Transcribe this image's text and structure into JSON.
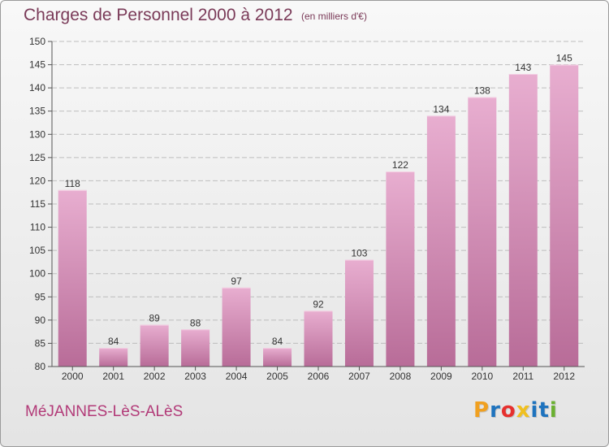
{
  "title": "Charges de Personnel 2000 à 2012",
  "subtitle": "(en milliers d'€)",
  "commune": "MéJANNES-LèS-ALèS",
  "logo": {
    "letters": [
      "P",
      "r",
      "o",
      "x",
      "i",
      "t",
      "i"
    ],
    "colors": [
      "#f0a020",
      "#1e73be",
      "#e6302e",
      "#f0c020",
      "#1e73be",
      "#1e73be",
      "#6ab030"
    ]
  },
  "colors": {
    "bar_top": "#e8aed0",
    "bar_bottom": "#b86c98",
    "bar_highlight": "#f3cfe3",
    "text": "#7a3a58",
    "axis": "#555555"
  },
  "chart_data": {
    "type": "bar",
    "categories": [
      "2000",
      "2001",
      "2002",
      "2003",
      "2004",
      "2005",
      "2006",
      "2007",
      "2008",
      "2009",
      "2010",
      "2011",
      "2012"
    ],
    "values": [
      118,
      84,
      89,
      88,
      97,
      84,
      92,
      103,
      122,
      134,
      138,
      143,
      145
    ],
    "ylim": [
      80,
      150
    ],
    "yticks": [
      80,
      85,
      90,
      95,
      100,
      105,
      110,
      115,
      120,
      125,
      130,
      135,
      140,
      145,
      150
    ],
    "grid": true,
    "title": "Charges de Personnel 2000 à 2012",
    "subtitle": "(en milliers d'€)",
    "xlabel": "",
    "ylabel": ""
  }
}
